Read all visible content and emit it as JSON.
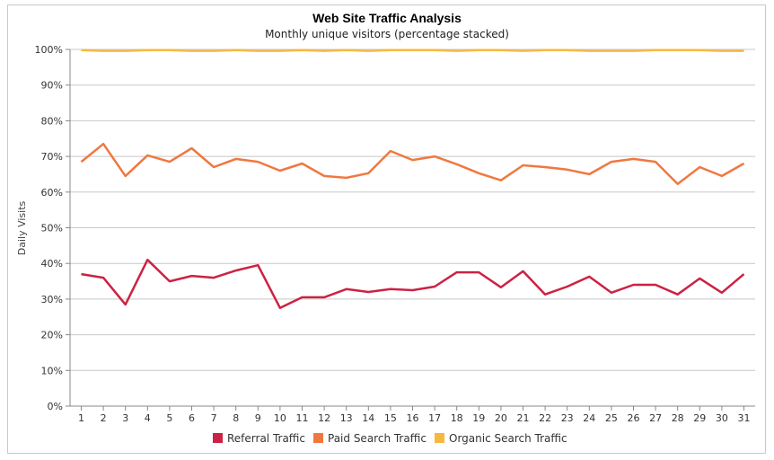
{
  "chart_data": {
    "type": "line",
    "title": "Web Site Traffic Analysis",
    "subtitle": "Monthly unique visitors (percentage stacked)",
    "ylabel": "Daily Visits",
    "xlabel": "",
    "ylim": [
      0,
      100
    ],
    "y_ticks": [
      "0%",
      "10%",
      "20%",
      "30%",
      "40%",
      "50%",
      "60%",
      "70%",
      "80%",
      "90%",
      "100%"
    ],
    "categories": [
      "1",
      "2",
      "3",
      "4",
      "5",
      "6",
      "7",
      "8",
      "9",
      "10",
      "11",
      "12",
      "13",
      "14",
      "15",
      "16",
      "17",
      "18",
      "19",
      "20",
      "21",
      "22",
      "23",
      "24",
      "25",
      "26",
      "27",
      "28",
      "29",
      "30",
      "31"
    ],
    "grid": true,
    "legend_position": "bottom",
    "series": [
      {
        "name": "Referral Traffic",
        "color": "#cc2244",
        "values": [
          37,
          36,
          28.5,
          41,
          35,
          36.5,
          36,
          38,
          39.5,
          27.5,
          30.5,
          30.5,
          32.8,
          32,
          32.8,
          32.5,
          33.5,
          37.5,
          37.5,
          33.3,
          37.8,
          31.3,
          33.5,
          36.3,
          31.8,
          34,
          34,
          31.3,
          35.8,
          31.8,
          37
        ]
      },
      {
        "name": "Paid Search Traffic",
        "color": "#f07840",
        "values": [
          68.5,
          73.5,
          64.5,
          70.3,
          68.5,
          72.3,
          67,
          69.3,
          68.5,
          66,
          68,
          64.5,
          64,
          65.3,
          71.5,
          69,
          70,
          67.8,
          65.3,
          63.3,
          67.5,
          67,
          66.3,
          65,
          68.5,
          69.3,
          68.5,
          62.3,
          67,
          64.5,
          68
        ]
      },
      {
        "name": "Organic Search Traffic",
        "color": "#f8b840",
        "values": [
          99.8,
          99.6,
          99.6,
          99.8,
          99.8,
          99.6,
          99.6,
          99.8,
          99.6,
          99.6,
          99.8,
          99.6,
          99.8,
          99.6,
          99.8,
          99.8,
          99.8,
          99.6,
          99.8,
          99.8,
          99.6,
          99.8,
          99.8,
          99.6,
          99.6,
          99.6,
          99.8,
          99.8,
          99.8,
          99.6,
          99.6
        ]
      }
    ]
  }
}
